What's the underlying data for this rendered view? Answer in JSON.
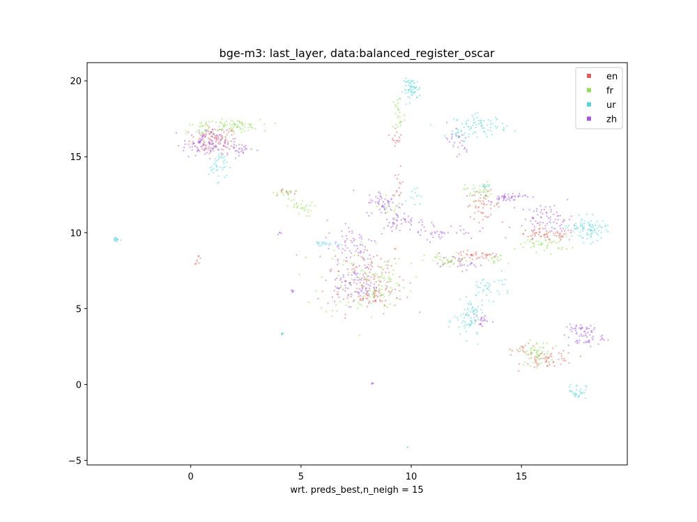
{
  "chart_data": {
    "type": "scatter",
    "title": "bge-m3: last_layer, data:balanced_register_oscar",
    "xlabel": "wrt. preds_best,n_neigh = 15",
    "ylabel": "",
    "xlim": [
      -4.7,
      19.8
    ],
    "ylim": [
      -5.3,
      21.2
    ],
    "xticks": [
      0,
      5,
      10,
      15
    ],
    "yticks": [
      -5,
      0,
      5,
      10,
      15,
      20
    ],
    "grid": false,
    "legend": {
      "position": "top-right"
    },
    "series": [
      {
        "name": "en",
        "color": "#db5f57",
        "clusters": [
          {
            "x": 1.0,
            "y": 16.1,
            "sx": 0.55,
            "sy": 0.45,
            "n": 90
          },
          {
            "x": 7.9,
            "y": 7.2,
            "sx": 0.9,
            "sy": 1.2,
            "n": 110
          },
          {
            "x": 8.4,
            "y": 5.9,
            "sx": 0.5,
            "sy": 0.4,
            "n": 40
          },
          {
            "x": 9.3,
            "y": 16.4,
            "sx": 0.12,
            "sy": 0.3,
            "n": 15
          },
          {
            "x": 9.4,
            "y": 12.8,
            "sx": 0.1,
            "sy": 0.7,
            "n": 15
          },
          {
            "x": 13.2,
            "y": 11.9,
            "sx": 0.4,
            "sy": 0.45,
            "n": 50
          },
          {
            "x": 12.4,
            "y": 8.4,
            "sx": 0.5,
            "sy": 0.25,
            "n": 25
          },
          {
            "x": 13.4,
            "y": 8.6,
            "sx": 0.35,
            "sy": 0.2,
            "n": 20
          },
          {
            "x": 16.1,
            "y": 9.9,
            "sx": 0.7,
            "sy": 0.2,
            "n": 60
          },
          {
            "x": 16.2,
            "y": 1.7,
            "sx": 0.6,
            "sy": 0.3,
            "n": 55
          },
          {
            "x": 15.1,
            "y": 2.4,
            "sx": 0.3,
            "sy": 0.15,
            "n": 15
          },
          {
            "x": 0.3,
            "y": 8.3,
            "sx": 0.08,
            "sy": 0.15,
            "n": 8
          },
          {
            "x": 4.3,
            "y": 12.7,
            "sx": 0.3,
            "sy": 0.15,
            "n": 10
          }
        ]
      },
      {
        "name": "fr",
        "color": "#91db57",
        "clusters": [
          {
            "x": 1.9,
            "y": 17.1,
            "sx": 0.6,
            "sy": 0.2,
            "n": 70
          },
          {
            "x": 0.6,
            "y": 16.7,
            "sx": 0.4,
            "sy": 0.4,
            "n": 30
          },
          {
            "x": 9.4,
            "y": 17.8,
            "sx": 0.15,
            "sy": 0.8,
            "n": 25
          },
          {
            "x": 7.8,
            "y": 7.0,
            "sx": 1.0,
            "sy": 1.3,
            "n": 90
          },
          {
            "x": 8.6,
            "y": 6.5,
            "sx": 0.35,
            "sy": 0.6,
            "n": 35
          },
          {
            "x": 4.9,
            "y": 11.7,
            "sx": 0.3,
            "sy": 0.3,
            "n": 30
          },
          {
            "x": 4.2,
            "y": 12.7,
            "sx": 0.25,
            "sy": 0.1,
            "n": 15
          },
          {
            "x": 13.0,
            "y": 12.8,
            "sx": 0.3,
            "sy": 0.3,
            "n": 35
          },
          {
            "x": 11.6,
            "y": 8.2,
            "sx": 0.5,
            "sy": 0.25,
            "n": 35
          },
          {
            "x": 13.8,
            "y": 8.2,
            "sx": 0.25,
            "sy": 0.2,
            "n": 15
          },
          {
            "x": 16.0,
            "y": 9.3,
            "sx": 0.6,
            "sy": 0.25,
            "n": 45
          },
          {
            "x": 15.6,
            "y": 2.1,
            "sx": 0.35,
            "sy": 0.4,
            "n": 55
          },
          {
            "x": 9.1,
            "y": 11.8,
            "sx": 0.4,
            "sy": 0.4,
            "n": 20
          }
        ]
      },
      {
        "name": "ur",
        "color": "#57d3db",
        "clusters": [
          {
            "x": 10.0,
            "y": 19.5,
            "sx": 0.2,
            "sy": 0.35,
            "n": 60
          },
          {
            "x": 13.1,
            "y": 17.1,
            "sx": 0.6,
            "sy": 0.35,
            "n": 70
          },
          {
            "x": 12.2,
            "y": 16.5,
            "sx": 0.3,
            "sy": 0.3,
            "n": 20
          },
          {
            "x": 1.2,
            "y": 14.5,
            "sx": 0.2,
            "sy": 0.5,
            "n": 40
          },
          {
            "x": 6.0,
            "y": 9.3,
            "sx": 0.3,
            "sy": 0.1,
            "n": 20
          },
          {
            "x": 13.5,
            "y": 6.5,
            "sx": 0.5,
            "sy": 0.4,
            "n": 35
          },
          {
            "x": 12.6,
            "y": 4.2,
            "sx": 0.35,
            "sy": 0.6,
            "n": 60
          },
          {
            "x": 12.7,
            "y": 5.1,
            "sx": 0.15,
            "sy": 0.3,
            "n": 15
          },
          {
            "x": 18.1,
            "y": 10.2,
            "sx": 0.35,
            "sy": 0.4,
            "n": 70
          },
          {
            "x": 17.5,
            "y": 10.5,
            "sx": 0.4,
            "sy": 0.15,
            "n": 20
          },
          {
            "x": 17.5,
            "y": -0.4,
            "sx": 0.2,
            "sy": 0.25,
            "n": 30
          },
          {
            "x": -3.4,
            "y": 9.6,
            "sx": 0.12,
            "sy": 0.08,
            "n": 15
          },
          {
            "x": 4.1,
            "y": 3.4,
            "sx": 0.05,
            "sy": 0.05,
            "n": 6
          },
          {
            "x": 10.1,
            "y": 12.6,
            "sx": 0.15,
            "sy": 0.3,
            "n": 12
          },
          {
            "x": 9.8,
            "y": -4.1,
            "sx": 0.02,
            "sy": 0.02,
            "n": 2
          },
          {
            "x": 13.2,
            "y": 13.0,
            "sx": 0.15,
            "sy": 0.15,
            "n": 10
          }
        ]
      },
      {
        "name": "zh",
        "color": "#a157db",
        "clusters": [
          {
            "x": 0.6,
            "y": 15.9,
            "sx": 0.5,
            "sy": 0.45,
            "n": 100
          },
          {
            "x": 2.2,
            "y": 15.6,
            "sx": 0.35,
            "sy": 0.3,
            "n": 30
          },
          {
            "x": 7.4,
            "y": 6.6,
            "sx": 0.5,
            "sy": 0.6,
            "n": 80
          },
          {
            "x": 7.3,
            "y": 9.3,
            "sx": 0.6,
            "sy": 0.8,
            "n": 60
          },
          {
            "x": 8.7,
            "y": 12.0,
            "sx": 0.4,
            "sy": 0.4,
            "n": 50
          },
          {
            "x": 9.6,
            "y": 10.8,
            "sx": 0.5,
            "sy": 0.3,
            "n": 40
          },
          {
            "x": 11.3,
            "y": 10.1,
            "sx": 0.8,
            "sy": 0.25,
            "n": 40
          },
          {
            "x": 12.0,
            "y": 16.0,
            "sx": 0.3,
            "sy": 0.6,
            "n": 25
          },
          {
            "x": 14.3,
            "y": 12.4,
            "sx": 0.45,
            "sy": 0.15,
            "n": 45
          },
          {
            "x": 16.1,
            "y": 11.0,
            "sx": 0.6,
            "sy": 0.45,
            "n": 70
          },
          {
            "x": 17.9,
            "y": 3.2,
            "sx": 0.4,
            "sy": 0.35,
            "n": 55
          },
          {
            "x": 17.4,
            "y": 3.8,
            "sx": 0.25,
            "sy": 0.15,
            "n": 15
          },
          {
            "x": 12.2,
            "y": 8.0,
            "sx": 0.5,
            "sy": 0.2,
            "n": 25
          },
          {
            "x": 4.6,
            "y": 6.2,
            "sx": 0.04,
            "sy": 0.04,
            "n": 5
          },
          {
            "x": 8.2,
            "y": 0.1,
            "sx": 0.03,
            "sy": 0.03,
            "n": 4
          },
          {
            "x": 4.0,
            "y": 10.0,
            "sx": 0.05,
            "sy": 0.05,
            "n": 4
          },
          {
            "x": 13.1,
            "y": 4.3,
            "sx": 0.2,
            "sy": 0.3,
            "n": 20
          }
        ]
      }
    ]
  }
}
